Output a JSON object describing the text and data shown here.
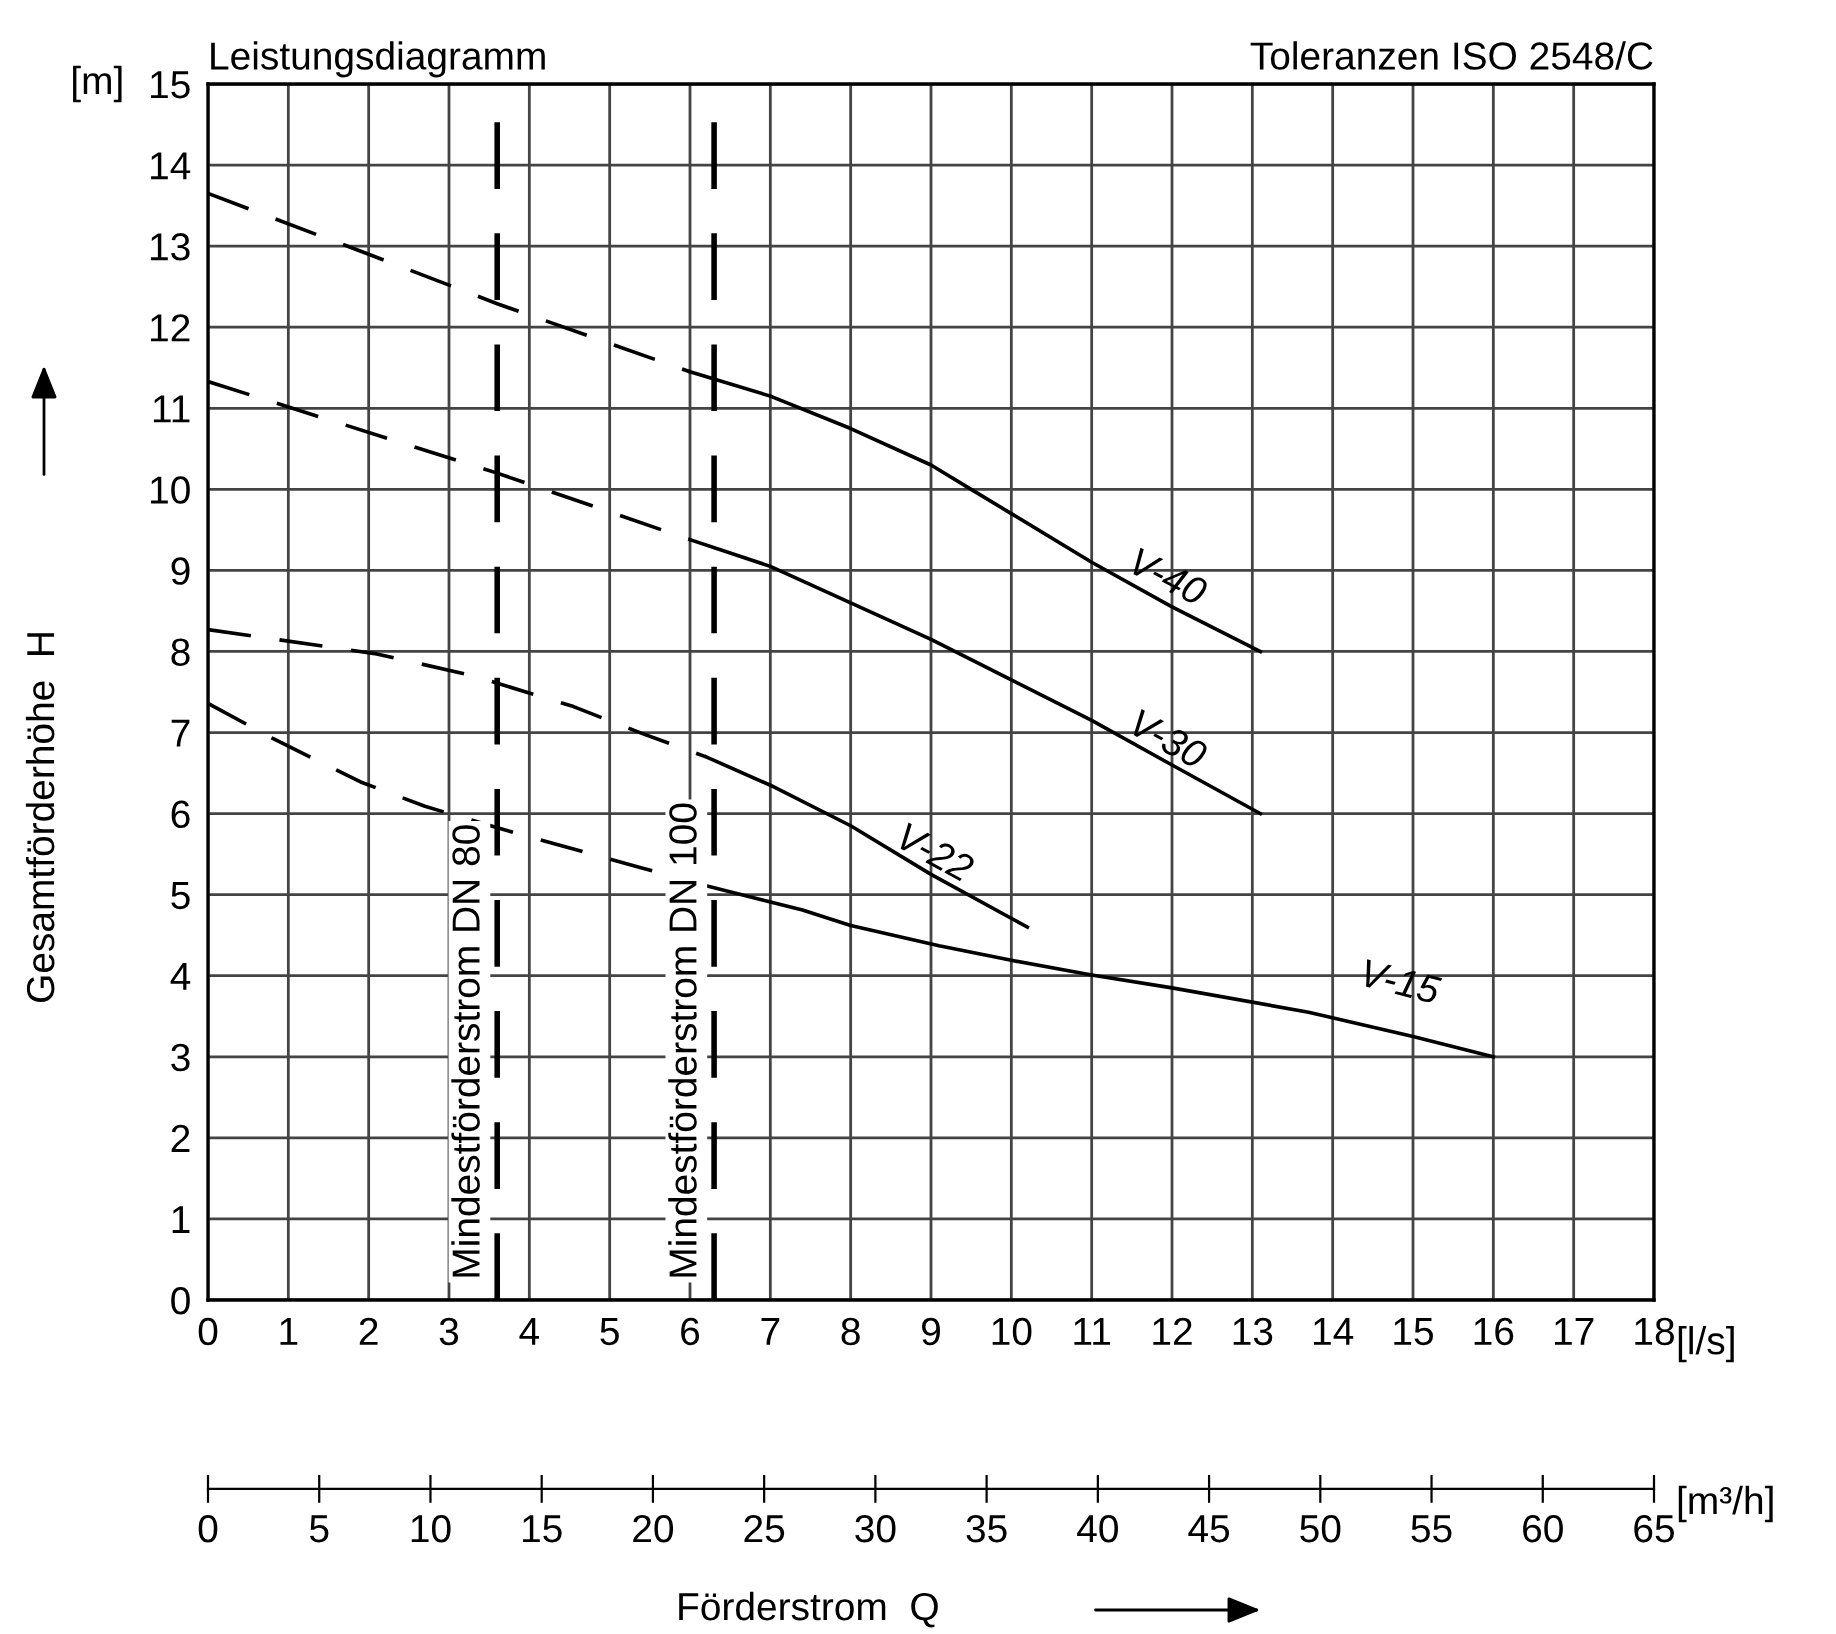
{
  "chart_data": {
    "type": "line",
    "title": "Leistungsdiagramm",
    "subtitle": "Toleranzen ISO 2548/C",
    "xlabel": "Förderstrom  Q",
    "ylabel": "Gesamtförderhöhe  H",
    "annotations": [
      "[m]",
      "[l/s]",
      "[m³/h]"
    ],
    "xlim": [
      0,
      18
    ],
    "xticks": [
      0,
      1,
      2,
      3,
      4,
      5,
      6,
      7,
      8,
      9,
      10,
      11,
      12,
      13,
      14,
      15,
      16,
      17,
      18
    ],
    "ylim": [
      0,
      15
    ],
    "yticks": [
      0,
      1,
      2,
      3,
      4,
      5,
      6,
      7,
      8,
      9,
      10,
      11,
      12,
      13,
      14,
      15
    ],
    "x2lim": [
      0,
      65
    ],
    "x2ticks": [
      0,
      5,
      10,
      15,
      20,
      25,
      30,
      35,
      40,
      45,
      50,
      55,
      60,
      65
    ],
    "grid": true,
    "legend": false,
    "marker": "none",
    "ref_lines": [
      {
        "axis": "x",
        "value": 3.6,
        "label": "Mindestförderstrom DN 80",
        "color": "#000000",
        "line_style": "dashed"
      },
      {
        "axis": "x",
        "value": 6.3,
        "label": "Mindestförderstrom DN 100",
        "color": "#000000",
        "line_style": "dashed"
      }
    ],
    "series": [
      {
        "color": "#000000",
        "line_style": "dashed",
        "x": [
          0,
          2,
          3.6,
          6.0
        ],
        "values": [
          13.65,
          12.9,
          12.29,
          11.45
        ]
      },
      {
        "name": "V-40",
        "color": "#000000",
        "line_style": "solid",
        "x": [
          6.0,
          7,
          8,
          9,
          9.5,
          10,
          11,
          12,
          13.1
        ],
        "values": [
          11.45,
          11.15,
          10.75,
          10.3,
          10.0,
          9.7,
          9.1,
          8.55,
          8.0
        ]
      },
      {
        "color": "#000000",
        "line_style": "dashed",
        "x": [
          0,
          3.6,
          6.0
        ],
        "values": [
          11.33,
          10.2,
          9.38
        ]
      },
      {
        "name": "V-30",
        "color": "#000000",
        "line_style": "solid",
        "x": [
          6.0,
          7,
          8,
          9,
          10,
          11,
          12,
          13.1
        ],
        "values": [
          9.38,
          9.05,
          8.6,
          8.15,
          7.65,
          7.15,
          6.6,
          6.0
        ]
      },
      {
        "color": "#000000",
        "line_style": "dashed",
        "x": [
          0,
          2.1,
          3.3,
          4.55,
          5.4,
          6.2
        ],
        "values": [
          8.27,
          7.97,
          7.7,
          7.32,
          6.99,
          6.7
        ]
      },
      {
        "name": "V-22",
        "color": "#000000",
        "line_style": "solid",
        "x": [
          6.2,
          7,
          8,
          9,
          10.2
        ],
        "values": [
          6.7,
          6.35,
          5.85,
          5.25,
          4.6
        ]
      },
      {
        "color": "#000000",
        "line_style": "dashed",
        "x": [
          0,
          0.8,
          1.9,
          2.7,
          3.55,
          4.3,
          5.4,
          6.2
        ],
        "values": [
          7.36,
          6.93,
          6.39,
          6.09,
          5.84,
          5.63,
          5.33,
          5.11
        ]
      },
      {
        "name": "V-15",
        "color": "#000000",
        "line_style": "solid",
        "x": [
          6.2,
          7.4,
          8,
          9.1,
          10,
          11,
          12,
          13.7,
          15,
          16
        ],
        "values": [
          5.11,
          4.81,
          4.62,
          4.37,
          4.19,
          4.01,
          3.85,
          3.55,
          3.25,
          3.0
        ]
      }
    ]
  }
}
